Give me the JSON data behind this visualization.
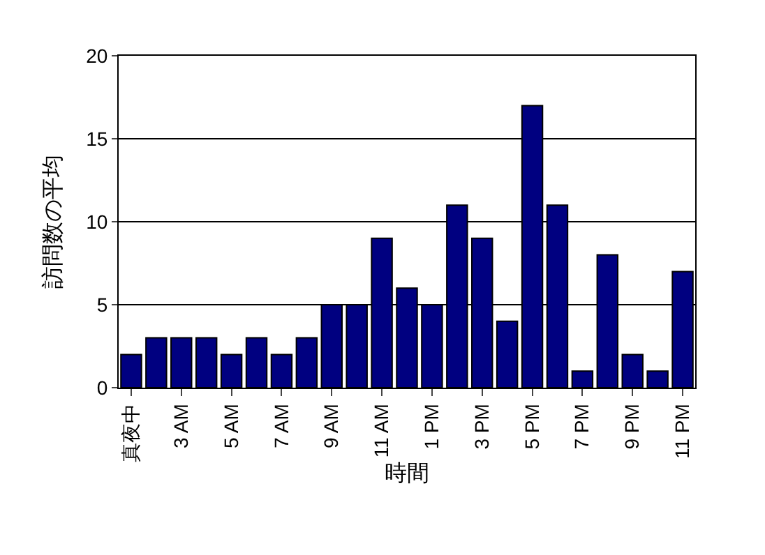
{
  "chart_data": {
    "type": "bar",
    "xlabel": "時間",
    "ylabel": "訪問数の平均",
    "categories": [
      "真夜中",
      null,
      "3 AM",
      null,
      "5 AM",
      null,
      "7 AM",
      null,
      "9 AM",
      null,
      "11 AM",
      null,
      "1 PM",
      null,
      "3 PM",
      null,
      "5 PM",
      null,
      "7 PM",
      null,
      "9 PM",
      null,
      "11 PM"
    ],
    "values": [
      2,
      3,
      3,
      3,
      2,
      3,
      2,
      3,
      5,
      5,
      9,
      6,
      5,
      11,
      9,
      4,
      17,
      11,
      1,
      8,
      2,
      1,
      7
    ],
    "color": "#000080",
    "ylim": [
      0,
      20
    ],
    "yticks": [
      0,
      5,
      10,
      15,
      20
    ],
    "grid": "y",
    "legend": false
  }
}
